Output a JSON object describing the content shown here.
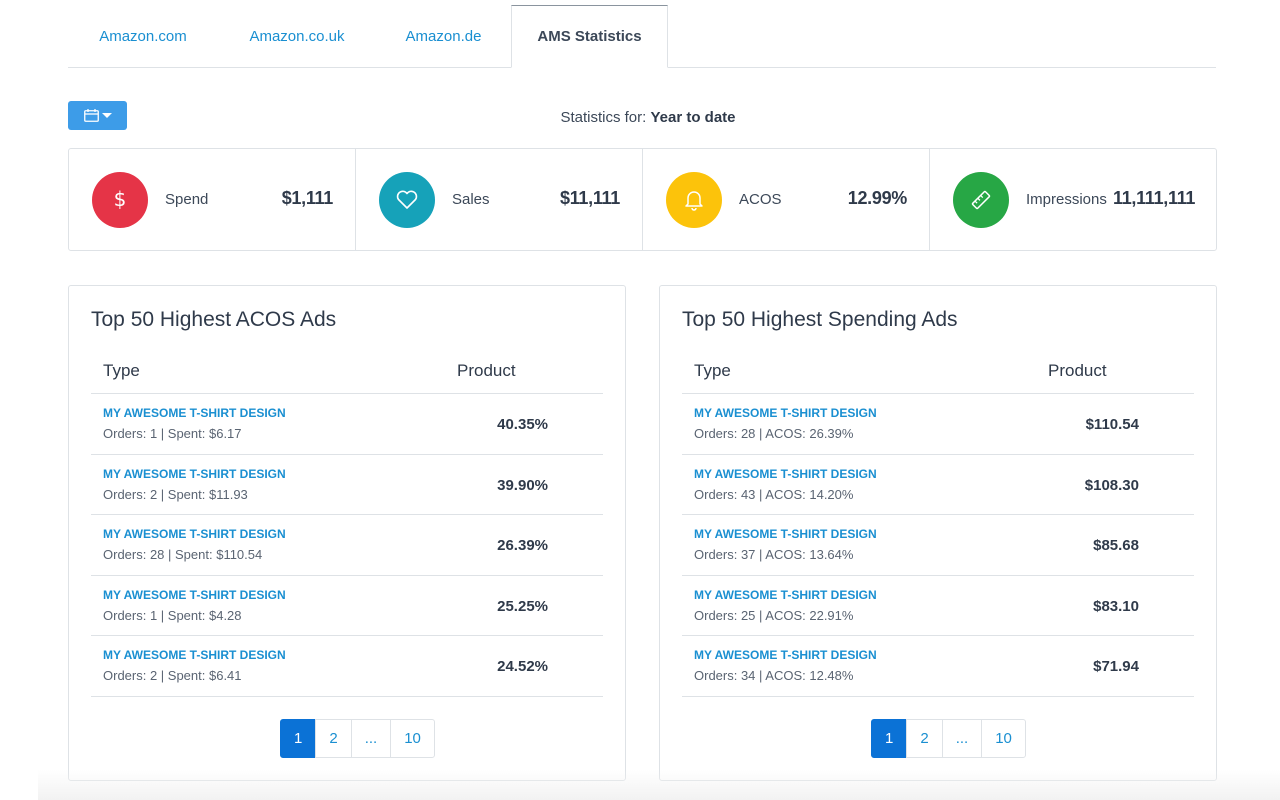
{
  "tabs": [
    {
      "label": "Amazon.com"
    },
    {
      "label": "Amazon.co.uk"
    },
    {
      "label": "Amazon.de"
    },
    {
      "label": "AMS Statistics",
      "active": true
    }
  ],
  "date_button": {
    "icon": "calendar-icon"
  },
  "statistics": {
    "prefix": "Statistics for:",
    "range": "Year to date"
  },
  "stats": [
    {
      "label": "Spend",
      "value": "$1,111",
      "icon": "dollar-icon",
      "color": "#e53447"
    },
    {
      "label": "Sales",
      "value": "$11,111",
      "icon": "heart-icon",
      "color": "#16a2b9"
    },
    {
      "label": "ACOS",
      "value": "12.99%",
      "icon": "bell-icon",
      "color": "#fcc30b"
    },
    {
      "label": "Impressions",
      "value": "11,111,111",
      "icon": "ruler-icon",
      "color": "#27a745"
    }
  ],
  "acos_table": {
    "title": "Top 50 Highest ACOS Ads",
    "col_type": "Type",
    "col_product": "Product",
    "rows": [
      {
        "name": "MY AWESOME T-SHIRT DESIGN",
        "meta": "Orders: 1 | Spent: $6.17",
        "value": "40.35%"
      },
      {
        "name": "MY AWESOME T-SHIRT DESIGN",
        "meta": "Orders: 2 | Spent: $11.93",
        "value": "39.90%"
      },
      {
        "name": "MY AWESOME T-SHIRT DESIGN",
        "meta": "Orders: 28 | Spent: $110.54",
        "value": "26.39%"
      },
      {
        "name": "MY AWESOME T-SHIRT DESIGN",
        "meta": "Orders: 1 | Spent: $4.28",
        "value": "25.25%"
      },
      {
        "name": "MY AWESOME T-SHIRT DESIGN",
        "meta": "Orders: 2 | Spent: $6.41",
        "value": "24.52%"
      }
    ],
    "pages": [
      "1",
      "2",
      "...",
      "10"
    ]
  },
  "spend_table": {
    "title": "Top 50 Highest Spending Ads",
    "col_type": "Type",
    "col_product": "Product",
    "rows": [
      {
        "name": "MY AWESOME T-SHIRT DESIGN",
        "meta": "Orders: 28 | ACOS: 26.39%",
        "value": "$110.54"
      },
      {
        "name": "MY AWESOME T-SHIRT DESIGN",
        "meta": "Orders: 43 | ACOS: 14.20%",
        "value": "$108.30"
      },
      {
        "name": "MY AWESOME T-SHIRT DESIGN",
        "meta": "Orders: 37 | ACOS: 13.64%",
        "value": "$85.68"
      },
      {
        "name": "MY AWESOME T-SHIRT DESIGN",
        "meta": "Orders: 25 | ACOS: 22.91%",
        "value": "$83.10"
      },
      {
        "name": "MY AWESOME T-SHIRT DESIGN",
        "meta": "Orders: 34 | ACOS: 12.48%",
        "value": "$71.94"
      }
    ],
    "pages": [
      "1",
      "2",
      "...",
      "10"
    ]
  }
}
